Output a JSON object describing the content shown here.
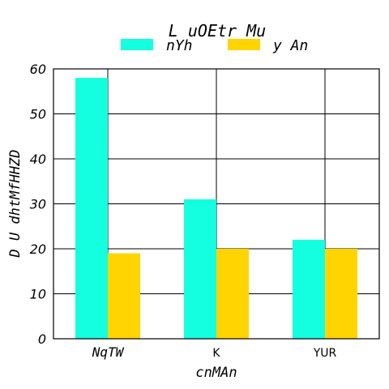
{
  "chart_data": {
    "type": "bar",
    "title": "L  uOEtr Mu",
    "xlabel": "cnMAn",
    "ylabel": "D  U dhtMfHHZD",
    "categories": [
      "NqTW",
      "K",
      "YUR"
    ],
    "series": [
      {
        "name": "nYh",
        "color": "#14FFE0",
        "values": [
          58,
          31,
          22
        ]
      },
      {
        "name": "y An",
        "color": "#FFD400",
        "values": [
          19,
          20,
          20
        ]
      }
    ],
    "ylim": [
      0,
      60
    ],
    "yticks": [
      "0",
      "10",
      "20",
      "30",
      "40",
      "50",
      "60"
    ],
    "grid": true,
    "legend_position": "top-center"
  }
}
